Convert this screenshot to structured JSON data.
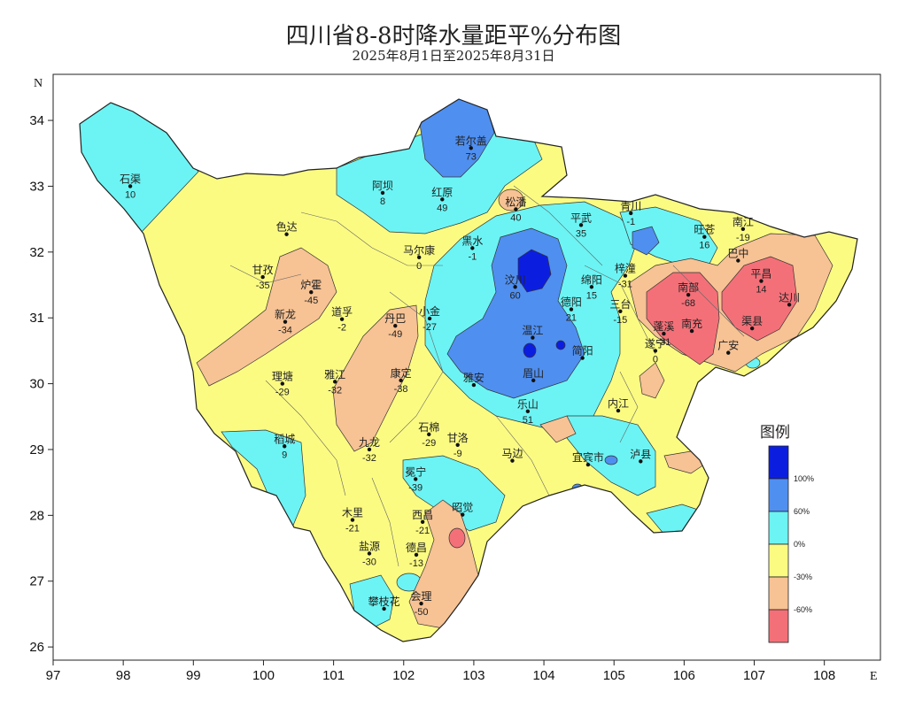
{
  "title": "四川省8-8时降水量距平%分布图",
  "subtitle": "2025年8月1日至2025年8月31日",
  "axes": {
    "x_ticks": [
      "97",
      "98",
      "99",
      "100",
      "101",
      "102",
      "103",
      "104",
      "105",
      "106",
      "107",
      "108"
    ],
    "y_ticks": [
      "34",
      "33",
      "32",
      "31",
      "30",
      "29",
      "28",
      "27",
      "26"
    ],
    "x_dir": "E",
    "y_dir": "N"
  },
  "legend": {
    "title": "图例",
    "labels": [
      "100%",
      "60%",
      "0%",
      "-30%",
      "-60%"
    ],
    "colors": [
      "#0b1ee0",
      "#4f8ff0",
      "#6cf4f4",
      "#fbfb82",
      "#f7c294",
      "#f47078"
    ]
  },
  "stations": [
    {
      "name": "石渠",
      "value": "10",
      "lon": 98.1,
      "lat": 33.0
    },
    {
      "name": "若尔盖",
      "value": "73",
      "lon": 102.96,
      "lat": 33.58
    },
    {
      "name": "阿坝",
      "value": "8",
      "lon": 101.7,
      "lat": 32.9
    },
    {
      "name": "红原",
      "value": "49",
      "lon": 102.55,
      "lat": 32.8
    },
    {
      "name": "松潘",
      "value": "40",
      "lon": 103.6,
      "lat": 32.65
    },
    {
      "name": "马尔康",
      "value": "0",
      "lon": 102.22,
      "lat": 31.92
    },
    {
      "name": "黑水",
      "value": "-1",
      "lon": 102.98,
      "lat": 32.06
    },
    {
      "name": "平武",
      "value": "35",
      "lon": 104.53,
      "lat": 32.41
    },
    {
      "name": "青川",
      "value": "-1",
      "lon": 105.24,
      "lat": 32.59
    },
    {
      "name": "旺苍",
      "value": "16",
      "lon": 106.29,
      "lat": 32.23
    },
    {
      "name": "南江",
      "value": "-19",
      "lon": 106.84,
      "lat": 32.35
    },
    {
      "name": "巴中",
      "value": "",
      "lon": 106.77,
      "lat": 31.87
    },
    {
      "name": "甘孜",
      "value": "-35",
      "lon": 99.99,
      "lat": 31.62
    },
    {
      "name": "色达",
      "value": "",
      "lon": 100.33,
      "lat": 32.27
    },
    {
      "name": "炉霍",
      "value": "-45",
      "lon": 100.68,
      "lat": 31.39
    },
    {
      "name": "新龙",
      "value": "-34",
      "lon": 100.31,
      "lat": 30.94
    },
    {
      "name": "道孚",
      "value": "-2",
      "lon": 101.12,
      "lat": 30.98
    },
    {
      "name": "丹巴",
      "value": "-49",
      "lon": 101.88,
      "lat": 30.88
    },
    {
      "name": "小金",
      "value": "-27",
      "lon": 102.37,
      "lat": 30.99
    },
    {
      "name": "汶川",
      "value": "60",
      "lon": 103.59,
      "lat": 31.47
    },
    {
      "name": "绵阳",
      "value": "15",
      "lon": 104.68,
      "lat": 31.47
    },
    {
      "name": "梓潼",
      "value": "-31",
      "lon": 105.16,
      "lat": 31.64
    },
    {
      "name": "南部",
      "value": "-68",
      "lon": 106.06,
      "lat": 31.35
    },
    {
      "name": "平昌",
      "value": "14",
      "lon": 107.1,
      "lat": 31.56
    },
    {
      "name": "达川",
      "value": "",
      "lon": 107.5,
      "lat": 31.2
    },
    {
      "name": "温江",
      "value": "",
      "lon": 103.84,
      "lat": 30.7
    },
    {
      "name": "德阳",
      "value": "21",
      "lon": 104.39,
      "lat": 31.13
    },
    {
      "name": "三台",
      "value": "-15",
      "lon": 105.09,
      "lat": 31.1
    },
    {
      "name": "南充",
      "value": "",
      "lon": 106.11,
      "lat": 30.8
    },
    {
      "name": "渠县",
      "value": "",
      "lon": 106.97,
      "lat": 30.84
    },
    {
      "name": "理塘",
      "value": "-29",
      "lon": 100.27,
      "lat": 30.0
    },
    {
      "name": "雅江",
      "value": "-32",
      "lon": 101.02,
      "lat": 30.03
    },
    {
      "name": "康定",
      "value": "-38",
      "lon": 101.96,
      "lat": 30.05
    },
    {
      "name": "雅安",
      "value": "",
      "lon": 103.0,
      "lat": 29.98
    },
    {
      "name": "眉山",
      "value": "",
      "lon": 103.85,
      "lat": 30.05
    },
    {
      "name": "简阳",
      "value": "",
      "lon": 104.55,
      "lat": 30.39
    },
    {
      "name": "遂宁",
      "value": "0",
      "lon": 105.59,
      "lat": 30.5
    },
    {
      "name": "广安",
      "value": "",
      "lon": 106.63,
      "lat": 30.47
    },
    {
      "name": "蓬溪",
      "value": "-31",
      "lon": 105.71,
      "lat": 30.76
    },
    {
      "name": "乐山",
      "value": "51",
      "lon": 103.77,
      "lat": 29.58
    },
    {
      "name": "内江",
      "value": "",
      "lon": 105.06,
      "lat": 29.59
    },
    {
      "name": "稻城",
      "value": "9",
      "lon": 100.3,
      "lat": 29.05
    },
    {
      "name": "九龙",
      "value": "-32",
      "lon": 101.51,
      "lat": 29.0
    },
    {
      "name": "石棉",
      "value": "-29",
      "lon": 102.36,
      "lat": 29.23
    },
    {
      "name": "甘洛",
      "value": "-9",
      "lon": 102.77,
      "lat": 29.07
    },
    {
      "name": "马边",
      "value": "",
      "lon": 103.55,
      "lat": 28.83
    },
    {
      "name": "宜宾市",
      "value": "",
      "lon": 104.63,
      "lat": 28.77
    },
    {
      "name": "泸县",
      "value": "",
      "lon": 105.38,
      "lat": 28.82
    },
    {
      "name": "冕宁",
      "value": "-39",
      "lon": 102.17,
      "lat": 28.55
    },
    {
      "name": "木里",
      "value": "-21",
      "lon": 101.27,
      "lat": 27.93
    },
    {
      "name": "西昌",
      "value": "-21",
      "lon": 102.27,
      "lat": 27.9
    },
    {
      "name": "昭觉",
      "value": "",
      "lon": 102.84,
      "lat": 28.01
    },
    {
      "name": "盐源",
      "value": "-30",
      "lon": 101.51,
      "lat": 27.42
    },
    {
      "name": "德昌",
      "value": "-13",
      "lon": 102.18,
      "lat": 27.4
    },
    {
      "name": "会理",
      "value": "-50",
      "lon": 102.25,
      "lat": 26.66
    },
    {
      "name": "攀枝花",
      "value": "",
      "lon": 101.72,
      "lat": 26.58
    }
  ]
}
